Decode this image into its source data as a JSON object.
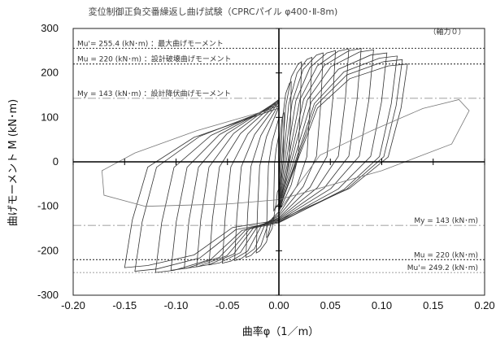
{
  "chart_data": {
    "type": "line",
    "title": "変位制御正負交番繰返し曲げ試験（CPRCパイル φ400･Ⅱ-8m)",
    "xlabel": "曲率φ（1／m）",
    "ylabel": "曲げモーメント M (kN･m)",
    "xlim": [
      -0.2,
      0.2
    ],
    "ylim": [
      -300,
      300
    ],
    "x_ticks": [
      "-0.20",
      "-0.15",
      "-0.10",
      "-0.05",
      "0.00",
      "0.05",
      "0.10",
      "0.15",
      "0.20"
    ],
    "y_ticks": [
      "300",
      "200",
      "100",
      "0",
      "-100",
      "-200",
      "-300"
    ],
    "axial_force_label": "（軸力０）",
    "grid": false,
    "reference_lines": [
      {
        "value": 255.4,
        "style": "dotted",
        "color": "#333333",
        "label": "Mu'= 255.4 (kN･m) ：最大曲げモーメント"
      },
      {
        "value": 220,
        "style": "dotted",
        "color": "#333333",
        "label": "Mu = 220 (kN･m) ：設計破壊曲げモーメント"
      },
      {
        "value": 143,
        "style": "dashdot",
        "color": "#aaaaaa",
        "label": "My = 143 (kN･m) ：設計降伏曲げモーメント"
      },
      {
        "value": -143,
        "style": "dashdot",
        "color": "#aaaaaa",
        "label": "My = 143 (kN･m)"
      },
      {
        "value": -220,
        "style": "dotted",
        "color": "#333333",
        "label": "Mu = 220 (kN･m)"
      },
      {
        "value": -249.2,
        "style": "dotted",
        "color": "#aaaaaa",
        "label": "Mu'= 249.2 (kN･m)"
      }
    ],
    "series": [
      {
        "loops": [
          {
            "xmax": 0.005,
            "xmin": -0.005,
            "mpos": 110,
            "mneg": -110
          },
          {
            "xmax": 0.012,
            "xmin": -0.012,
            "mpos": 180,
            "mneg": -170
          },
          {
            "xmax": 0.022,
            "xmin": -0.022,
            "mpos": 225,
            "mneg": -205
          },
          {
            "xmax": 0.032,
            "xmin": -0.032,
            "mpos": 235,
            "mneg": -215
          },
          {
            "xmax": 0.043,
            "xmin": -0.043,
            "mpos": 245,
            "mneg": -222
          },
          {
            "xmax": 0.055,
            "xmin": -0.055,
            "mpos": 250,
            "mneg": -228
          },
          {
            "xmax": 0.068,
            "xmin": -0.068,
            "mpos": 254,
            "mneg": -232
          },
          {
            "xmax": 0.08,
            "xmin": -0.08,
            "mpos": 255,
            "mneg": -236
          },
          {
            "xmax": 0.092,
            "xmin": -0.092,
            "mpos": 252,
            "mneg": -240
          },
          {
            "xmax": 0.105,
            "xmin": -0.105,
            "mpos": 245,
            "mneg": -244
          },
          {
            "xmax": 0.115,
            "xmin": -0.12,
            "mpos": 238,
            "mneg": -249
          },
          {
            "xmax": 0.12,
            "xmin": -0.14,
            "mpos": 230,
            "mneg": -246
          },
          {
            "xmax": 0.125,
            "xmin": -0.15,
            "mpos": 220,
            "mneg": -238
          }
        ],
        "final_cycle": [
          [
            0.0,
            -110
          ],
          [
            0.04,
            15
          ],
          [
            0.09,
            70
          ],
          [
            0.14,
            120
          ],
          [
            0.175,
            140
          ],
          [
            0.185,
            115
          ],
          [
            0.168,
            40
          ],
          [
            0.1,
            -20
          ],
          [
            0.0,
            -85
          ],
          [
            -0.05,
            -95
          ],
          [
            -0.13,
            -100
          ],
          [
            -0.17,
            -75
          ],
          [
            -0.172,
            -20
          ],
          [
            -0.14,
            20
          ],
          [
            -0.08,
            70
          ],
          [
            -0.02,
            110
          ],
          [
            0.0,
            120
          ]
        ]
      }
    ]
  }
}
